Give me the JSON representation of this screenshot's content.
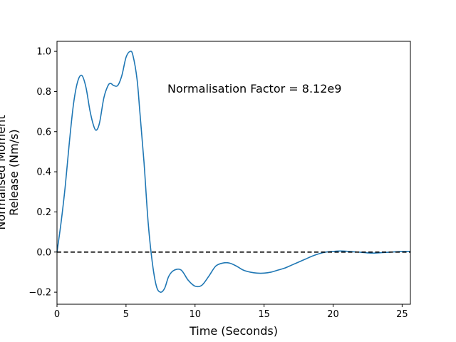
{
  "chart_data": {
    "type": "line",
    "xlabel": "Time (Seconds)",
    "ylabel_lines": [
      "Normalised Moment",
      "Release (Nm/s)"
    ],
    "annotation": "Normalisation Factor = 8.12e9",
    "xlim": [
      0,
      25.6
    ],
    "ylim": [
      -0.26,
      1.05
    ],
    "xticks": [
      0,
      5,
      10,
      15,
      20,
      25
    ],
    "yticks": [
      -0.2,
      0.0,
      0.2,
      0.4,
      0.6,
      0.8,
      1.0
    ],
    "ytick_labels": [
      "−0.2",
      "0.0",
      "0.2",
      "0.4",
      "0.6",
      "0.8",
      "1.0"
    ],
    "grid": false,
    "series": [
      {
        "color": "#1f77b4",
        "x": [
          0,
          0.3,
          0.6,
          0.9,
          1.2,
          1.5,
          1.8,
          2.1,
          2.4,
          2.7,
          2.9,
          3.1,
          3.4,
          3.7,
          3.9,
          4.1,
          4.4,
          4.7,
          5.0,
          5.3,
          5.5,
          5.8,
          6.0,
          6.3,
          6.6,
          6.9,
          7.2,
          7.5,
          7.8,
          8.1,
          8.5,
          9.0,
          9.5,
          10.0,
          10.5,
          11.0,
          11.5,
          12.0,
          12.5,
          13.0,
          13.5,
          14.0,
          14.5,
          15.0,
          15.5,
          16.0,
          16.5,
          17.0,
          17.5,
          18.0,
          18.5,
          19.0,
          19.5,
          20.0,
          20.5,
          21.0,
          21.5,
          22.0,
          22.5,
          23.0,
          23.5,
          24.0,
          24.5,
          25.0,
          25.6
        ],
        "y": [
          0.0,
          0.15,
          0.33,
          0.55,
          0.74,
          0.85,
          0.88,
          0.82,
          0.7,
          0.62,
          0.61,
          0.65,
          0.77,
          0.83,
          0.84,
          0.83,
          0.83,
          0.88,
          0.97,
          1.0,
          0.98,
          0.86,
          0.7,
          0.45,
          0.15,
          -0.05,
          -0.17,
          -0.2,
          -0.18,
          -0.12,
          -0.09,
          -0.09,
          -0.14,
          -0.17,
          -0.165,
          -0.12,
          -0.07,
          -0.055,
          -0.055,
          -0.07,
          -0.09,
          -0.1,
          -0.105,
          -0.105,
          -0.1,
          -0.09,
          -0.08,
          -0.065,
          -0.05,
          -0.035,
          -0.02,
          -0.008,
          0.0,
          0.003,
          0.005,
          0.004,
          0.001,
          -0.001,
          -0.004,
          -0.005,
          -0.003,
          -0.001,
          0.001,
          0.003,
          0.003
        ]
      }
    ],
    "reference_lines": [
      {
        "y": 0.0,
        "style": "dashed",
        "color": "#000000"
      }
    ]
  }
}
